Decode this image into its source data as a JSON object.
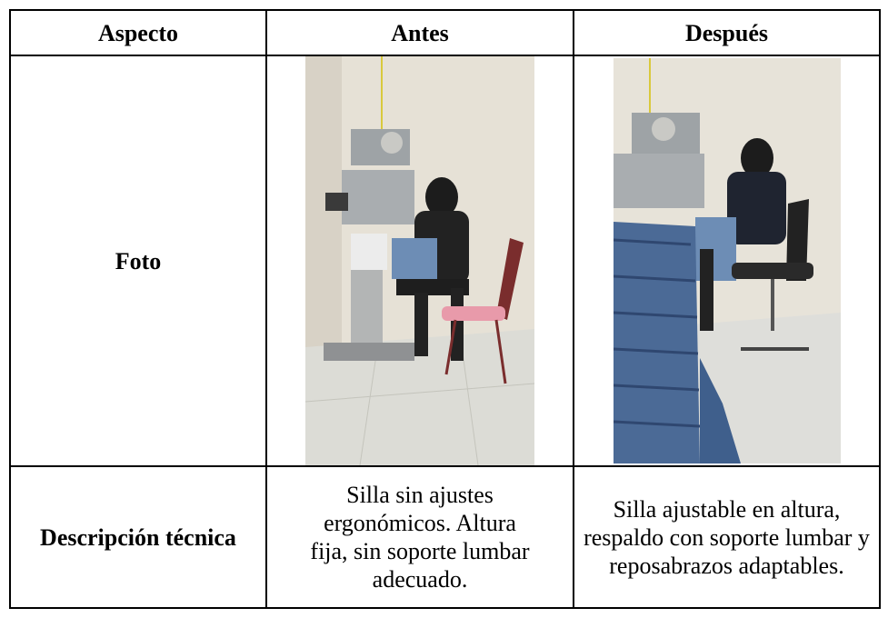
{
  "table": {
    "header": [
      "Aspecto",
      "Antes",
      "Después"
    ],
    "rows": [
      [
        "Foto"
      ],
      [
        "Descripción técnica",
        "Silla sin ajustes ergonómicos. Altura fija, sin soporte lumbar adecuado.",
        "Silla ajustable en altura, respaldo con soporte lumbar y reposabrazos adaptables."
      ]
    ]
  }
}
